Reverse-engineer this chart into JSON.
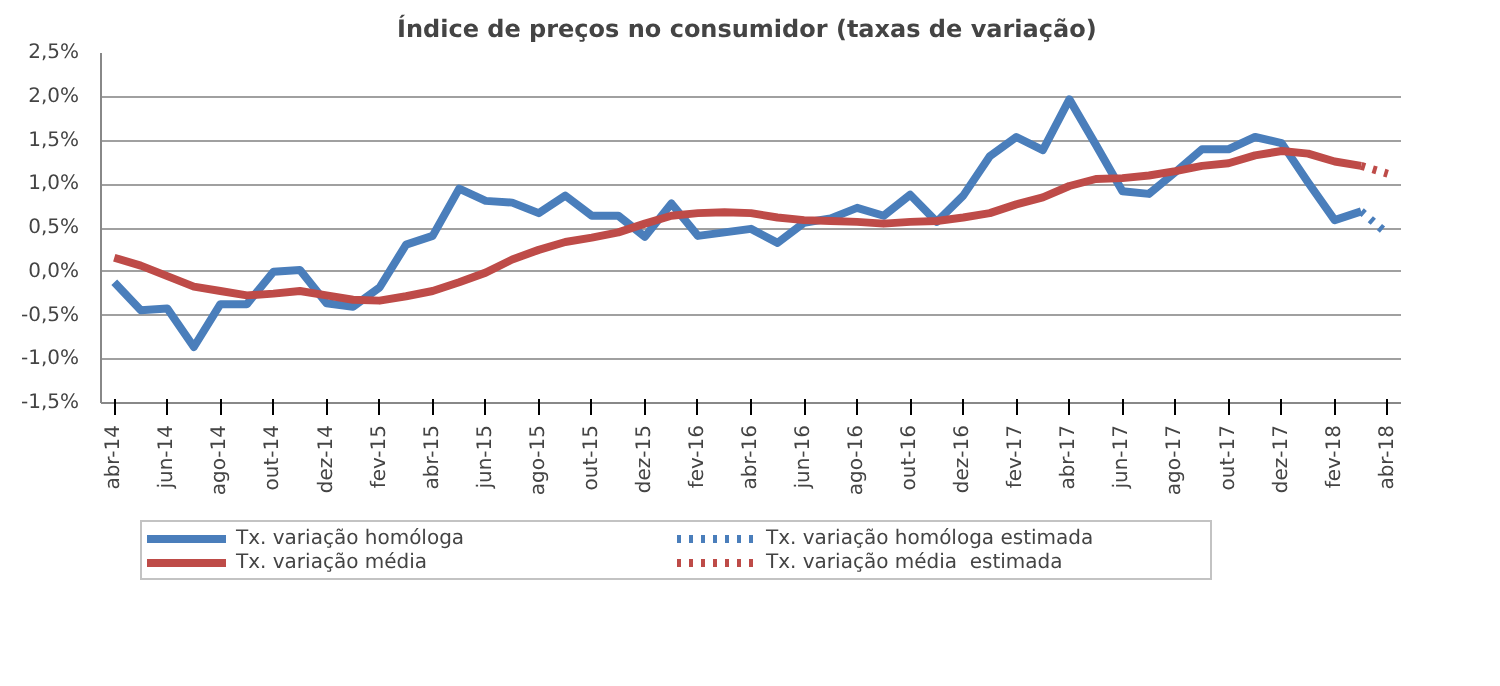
{
  "chart_data": {
    "type": "line",
    "title": "Índice de preços no consumidor  (taxas de variação)",
    "categories": [
      "abr-14",
      null,
      "jun-14",
      null,
      "ago-14",
      null,
      "out-14",
      null,
      "dez-14",
      null,
      "fev-15",
      null,
      "abr-15",
      null,
      "jun-15",
      null,
      "ago-15",
      null,
      "out-15",
      null,
      "dez-15",
      null,
      "fev-16",
      null,
      "abr-16",
      null,
      "jun-16",
      null,
      "ago-16",
      null,
      "out-16",
      null,
      "dez-16",
      null,
      "fev-17",
      null,
      "abr-17",
      null,
      "jun-17",
      null,
      "ago-17",
      null,
      "out-17",
      null,
      "dez-17",
      null,
      "fev-18",
      null,
      "abr-18"
    ],
    "series": [
      {
        "name": "Tx. variação homóloga",
        "color": "#4a7ebb",
        "line_style": "solid",
        "values": [
          -0.12,
          -0.44,
          -0.42,
          -0.86,
          -0.37,
          -0.37,
          0.0,
          0.02,
          -0.36,
          -0.4,
          -0.18,
          0.31,
          0.41,
          0.95,
          0.81,
          0.79,
          0.67,
          0.87,
          0.64,
          0.64,
          0.4,
          0.78,
          0.41,
          0.45,
          0.49,
          0.33,
          0.56,
          0.61,
          0.73,
          0.64,
          0.88,
          0.57,
          0.87,
          1.32,
          1.54,
          1.39,
          1.97,
          1.45,
          0.92,
          0.89,
          1.14,
          1.4,
          1.4,
          1.54,
          1.47,
          1.02,
          0.59,
          0.69,
          null
        ]
      },
      {
        "name": "Tx. variação homóloga estimada",
        "color": "#4a7ebb",
        "line_style": "dotted",
        "values": [
          null,
          null,
          null,
          null,
          null,
          null,
          null,
          null,
          null,
          null,
          null,
          null,
          null,
          null,
          null,
          null,
          null,
          null,
          null,
          null,
          null,
          null,
          null,
          null,
          null,
          null,
          null,
          null,
          null,
          null,
          null,
          null,
          null,
          null,
          null,
          null,
          null,
          null,
          null,
          null,
          null,
          null,
          null,
          null,
          null,
          null,
          null,
          0.69,
          0.43
        ]
      },
      {
        "name": "Tx. variação média",
        "color": "#be4b48",
        "line_style": "solid",
        "values": [
          0.16,
          0.07,
          -0.05,
          -0.17,
          -0.22,
          -0.27,
          -0.25,
          -0.22,
          -0.27,
          -0.32,
          -0.33,
          -0.28,
          -0.22,
          -0.12,
          -0.01,
          0.14,
          0.25,
          0.34,
          0.39,
          0.45,
          0.55,
          0.64,
          0.67,
          0.68,
          0.67,
          0.62,
          0.59,
          0.58,
          0.57,
          0.55,
          0.57,
          0.58,
          0.62,
          0.67,
          0.77,
          0.85,
          0.98,
          1.06,
          1.07,
          1.1,
          1.15,
          1.21,
          1.24,
          1.33,
          1.38,
          1.35,
          1.26,
          1.21,
          null
        ]
      },
      {
        "name": "Tx. variação média  estimada",
        "color": "#be4b48",
        "line_style": "dotted",
        "values": [
          null,
          null,
          null,
          null,
          null,
          null,
          null,
          null,
          null,
          null,
          null,
          null,
          null,
          null,
          null,
          null,
          null,
          null,
          null,
          null,
          null,
          null,
          null,
          null,
          null,
          null,
          null,
          null,
          null,
          null,
          null,
          null,
          null,
          null,
          null,
          null,
          null,
          null,
          null,
          null,
          null,
          null,
          null,
          null,
          null,
          null,
          null,
          1.21,
          1.12
        ]
      }
    ],
    "ylim": [
      -1.5,
      2.5
    ],
    "yticks": [
      {
        "value": -1.5,
        "label": "-1,5%"
      },
      {
        "value": -1.0,
        "label": "-1,0%"
      },
      {
        "value": -0.5,
        "label": "-0,5%"
      },
      {
        "value": 0,
        "label": "0,0%"
      },
      {
        "value": 0.5,
        "label": "0,5%"
      },
      {
        "value": 1.0,
        "label": "1,0%"
      },
      {
        "value": 1.5,
        "label": "1,5%"
      },
      {
        "value": 2.0,
        "label": "2,0%"
      },
      {
        "value": 2.5,
        "label": "2,5%"
      }
    ],
    "grid": "y",
    "legend": "bottom",
    "marker": "none"
  }
}
